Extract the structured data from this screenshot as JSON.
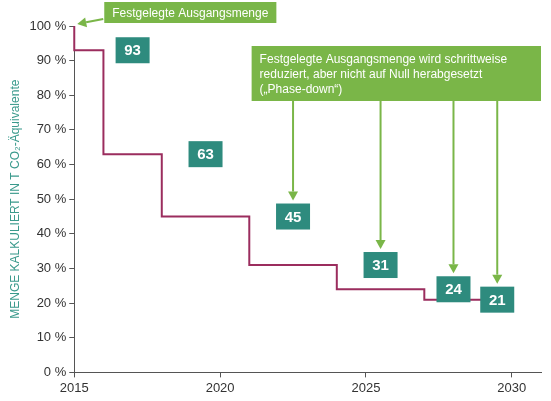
{
  "chart_data": {
    "type": "line",
    "y_label": "MENGE KALKULIERT IN T CO₂-Äquivalente",
    "x": [
      2015,
      2016,
      2018,
      2021,
      2024,
      2027,
      2029,
      2030
    ],
    "values": [
      100,
      93,
      63,
      45,
      31,
      24,
      21,
      21
    ],
    "value_labels": [
      null,
      "93",
      "63",
      "45",
      "31",
      "24",
      "21",
      null
    ],
    "data_labels": true,
    "color": "#9b2d5e",
    "line_style": "step",
    "xlim": [
      2015,
      2031
    ],
    "xticks": [
      2015,
      2020,
      2025,
      2030
    ],
    "ylim": [
      0,
      100
    ],
    "yticks": [
      {
        "value": 0,
        "label": "0 %"
      },
      {
        "value": 10,
        "label": "10 %"
      },
      {
        "value": 20,
        "label": "20 %"
      },
      {
        "value": 30,
        "label": "30 %"
      },
      {
        "value": 40,
        "label": "40 %"
      },
      {
        "value": 50,
        "label": "50 %"
      },
      {
        "value": 60,
        "label": "60 %"
      },
      {
        "value": 70,
        "label": "70 %"
      },
      {
        "value": 80,
        "label": "80 %"
      },
      {
        "value": 90,
        "label": "90 %"
      },
      {
        "value": 100,
        "label": "100 %"
      }
    ],
    "grid": false,
    "annotations": [
      "Festgelegte Ausgangsmenge",
      "Festgelegte Ausgangsmenge wird schrittweise reduziert, aber nicht auf Null herabgesetzt („Phase-down“)"
    ]
  }
}
